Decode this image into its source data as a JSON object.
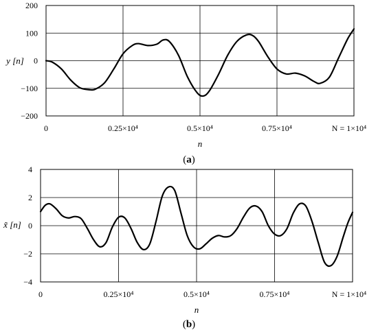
{
  "chart_data": [
    {
      "type": "line",
      "panel_label": "a",
      "xlabel": "n",
      "ylabel": "y [n]",
      "xlim": [
        0,
        10000
      ],
      "ylim": [
        -200,
        200
      ],
      "x_ticks": [
        {
          "value": 0,
          "label": "0"
        },
        {
          "value": 2500,
          "label": "0.25×10⁴"
        },
        {
          "value": 5000,
          "label": "0.5×10⁴"
        },
        {
          "value": 7500,
          "label": "0.75×10⁴"
        },
        {
          "value": 10000,
          "label": "N = 1×10⁴"
        }
      ],
      "y_ticks": [
        {
          "value": 200,
          "label": "200"
        },
        {
          "value": 100,
          "label": "100"
        },
        {
          "value": 0,
          "label": "0"
        },
        {
          "value": -100,
          "label": "−100"
        },
        {
          "value": -200,
          "label": "−200"
        }
      ],
      "grid": true,
      "x": [
        0,
        200,
        500,
        800,
        1100,
        1400,
        1600,
        1900,
        2200,
        2500,
        2800,
        3000,
        3300,
        3600,
        3800,
        4000,
        4300,
        4600,
        4900,
        5100,
        5300,
        5600,
        5900,
        6200,
        6500,
        6700,
        6900,
        7200,
        7500,
        7800,
        8100,
        8400,
        8700,
        8900,
        9200,
        9500,
        9800,
        10000
      ],
      "y": [
        0,
        -5,
        -30,
        -70,
        -98,
        -105,
        -103,
        -80,
        -30,
        25,
        55,
        62,
        55,
        60,
        75,
        70,
        20,
        -60,
        -115,
        -128,
        -110,
        -50,
        20,
        70,
        93,
        92,
        70,
        15,
        -30,
        -48,
        -45,
        -55,
        -75,
        -82,
        -60,
        10,
        80,
        115
      ]
    },
    {
      "type": "line",
      "panel_label": "b",
      "xlabel": "n",
      "ylabel": "x̃ [n]",
      "xlim": [
        0,
        10000
      ],
      "ylim": [
        -4,
        4
      ],
      "x_ticks": [
        {
          "value": 0,
          "label": "0"
        },
        {
          "value": 2500,
          "label": "0.25×10⁴"
        },
        {
          "value": 5000,
          "label": "0.5×10⁴"
        },
        {
          "value": 7500,
          "label": "0.75×10⁴"
        },
        {
          "value": 10000,
          "label": "N = 1×10⁴"
        }
      ],
      "y_ticks": [
        {
          "value": 4,
          "label": "4"
        },
        {
          "value": 2,
          "label": "2"
        },
        {
          "value": 0,
          "label": "0"
        },
        {
          "value": -2,
          "label": "−2"
        },
        {
          "value": -4,
          "label": "−4"
        }
      ],
      "grid": true,
      "x": [
        0,
        150,
        300,
        500,
        700,
        900,
        1100,
        1300,
        1500,
        1700,
        1900,
        2100,
        2300,
        2500,
        2700,
        2900,
        3100,
        3300,
        3500,
        3700,
        3900,
        4100,
        4300,
        4500,
        4700,
        4900,
        5100,
        5300,
        5500,
        5700,
        5900,
        6100,
        6300,
        6500,
        6700,
        6900,
        7100,
        7300,
        7500,
        7700,
        7900,
        8100,
        8300,
        8500,
        8700,
        8900,
        9100,
        9300,
        9500,
        9700,
        9850,
        10000
      ],
      "y": [
        1.0,
        1.45,
        1.55,
        1.2,
        0.7,
        0.55,
        0.65,
        0.5,
        -0.2,
        -1.0,
        -1.5,
        -1.2,
        -0.1,
        0.6,
        0.55,
        -0.2,
        -1.2,
        -1.7,
        -1.3,
        0.3,
        2.1,
        2.75,
        2.5,
        0.9,
        -0.7,
        -1.5,
        -1.65,
        -1.3,
        -0.9,
        -0.7,
        -0.8,
        -0.7,
        -0.2,
        0.6,
        1.25,
        1.4,
        1.0,
        0.0,
        -0.6,
        -0.7,
        -0.2,
        0.9,
        1.55,
        1.4,
        0.3,
        -1.2,
        -2.6,
        -2.85,
        -2.2,
        -0.8,
        0.2,
        0.95
      ]
    }
  ]
}
